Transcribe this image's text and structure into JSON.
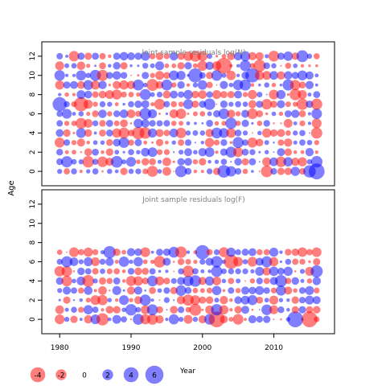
{
  "chart_data": {
    "type": "scatter",
    "ylabel": "Age",
    "xlabel": "Year",
    "x_ticks": [
      1980,
      1990,
      2000,
      2010
    ],
    "y_ticks": [
      0,
      2,
      4,
      6,
      8,
      10,
      12
    ],
    "xlim": [
      1977.5,
      2018.5
    ],
    "colors": {
      "positive": "#0000FF",
      "negative": "#FF0000"
    },
    "panels": [
      {
        "id": "logN",
        "title": "Joint sample residuals log(N)",
        "ylim": [
          -1.5,
          13.5
        ],
        "ages": [
          0,
          12
        ],
        "bubble_grid": {
          "x_start": 1980,
          "x_end": 2016,
          "y_start": 0,
          "y_end": 12
        }
      },
      {
        "id": "logF",
        "title": "Joint sample residuals log(F)",
        "ylim": [
          -1.5,
          13.5
        ],
        "ages": [
          0,
          7
        ],
        "bubble_grid": {
          "x_start": 1980,
          "x_end": 2016,
          "y_start": 0,
          "y_end": 7
        }
      }
    ],
    "highlights": [
      {
        "panel": "logN",
        "year": 2003,
        "age": 11,
        "value": -5
      },
      {
        "panel": "logN",
        "year": 2016,
        "age": 0,
        "value": 5
      },
      {
        "panel": "logN",
        "year": 1999,
        "age": 10,
        "value": 4
      },
      {
        "panel": "logN",
        "year": 2007,
        "age": 10,
        "value": 4
      },
      {
        "panel": "logN",
        "year": 1980,
        "age": 7,
        "value": 4
      },
      {
        "panel": "logN",
        "year": 1983,
        "age": 7,
        "value": -4
      },
      {
        "panel": "logF",
        "year": 2002,
        "age": 0,
        "value": -5
      },
      {
        "panel": "logF",
        "year": 2013,
        "age": 0,
        "value": 5
      },
      {
        "panel": "logF",
        "year": 2015,
        "age": 0,
        "value": -5
      },
      {
        "panel": "logF",
        "year": 2017,
        "age": 6,
        "value": -4
      },
      {
        "panel": "logF",
        "year": 2004,
        "age": 6,
        "value": -4
      },
      {
        "panel": "logF",
        "year": 2000,
        "age": 7,
        "value": 4
      }
    ],
    "legend": {
      "placement": "bottom-left",
      "entries": [
        {
          "label": "-4",
          "value": -4
        },
        {
          "label": "-2",
          "value": -2
        },
        {
          "label": "0",
          "value": 0
        },
        {
          "label": "2",
          "value": 2
        },
        {
          "label": "4",
          "value": 4
        },
        {
          "label": "6",
          "value": 6
        }
      ]
    }
  }
}
